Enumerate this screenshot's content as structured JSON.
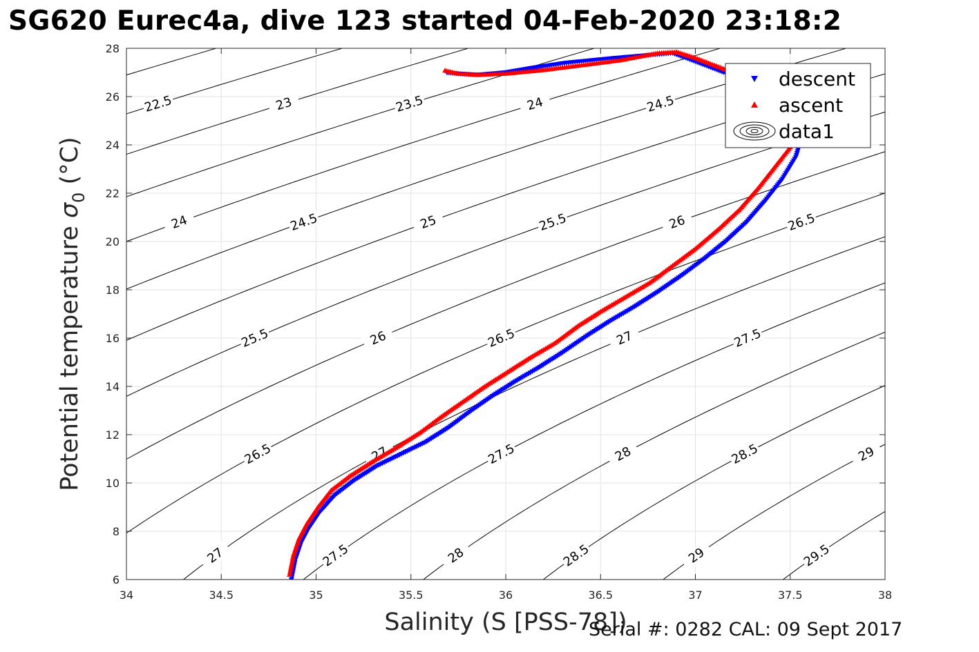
{
  "title": "SG620 Eurec4a, dive 123 started 04-Feb-2020 23:18:2",
  "footer": "Serial #: 0282  CAL: 09 Sept 2017",
  "chart_data": {
    "type": "scatter",
    "xlabel": "Salinity (S [PSS-78])",
    "ylabel_main": "Potential temperature ",
    "ylabel_symbol": "σ",
    "ylabel_sub": "0",
    "ylabel_unit": " (°C)",
    "xlim": [
      34,
      38
    ],
    "ylim": [
      6,
      28
    ],
    "xticks": [
      34,
      34.5,
      35,
      35.5,
      36,
      36.5,
      37,
      37.5,
      38
    ],
    "yticks": [
      6,
      8,
      10,
      12,
      14,
      16,
      18,
      20,
      22,
      24,
      26,
      28
    ],
    "grid": true,
    "legend_position": "top-right",
    "legend": [
      {
        "label": "descent",
        "marker": "triangle-down",
        "color": "#0000ff"
      },
      {
        "label": "ascent",
        "marker": "triangle-up",
        "color": "#ff0000"
      },
      {
        "label": "data1",
        "marker": "contour-rings",
        "color": "#000000"
      }
    ],
    "series": [
      {
        "name": "descent",
        "color": "#0000ff",
        "marker": "triangle-down",
        "points": [
          [
            34.87,
            6.0
          ],
          [
            34.89,
            6.8
          ],
          [
            34.92,
            7.5
          ],
          [
            34.96,
            8.1
          ],
          [
            35.02,
            8.8
          ],
          [
            35.1,
            9.5
          ],
          [
            35.2,
            10.1
          ],
          [
            35.32,
            10.7
          ],
          [
            35.45,
            11.2
          ],
          [
            35.58,
            11.7
          ],
          [
            35.7,
            12.3
          ],
          [
            35.82,
            13.0
          ],
          [
            35.93,
            13.6
          ],
          [
            36.05,
            14.2
          ],
          [
            36.18,
            14.8
          ],
          [
            36.3,
            15.4
          ],
          [
            36.43,
            16.1
          ],
          [
            36.55,
            16.7
          ],
          [
            36.68,
            17.3
          ],
          [
            36.8,
            17.9
          ],
          [
            36.93,
            18.6
          ],
          [
            37.05,
            19.3
          ],
          [
            37.16,
            20.0
          ],
          [
            37.27,
            20.8
          ],
          [
            37.37,
            21.7
          ],
          [
            37.46,
            22.6
          ],
          [
            37.53,
            23.5
          ],
          [
            37.56,
            24.3
          ],
          [
            37.45,
            26.3
          ],
          [
            37.3,
            26.7
          ],
          [
            37.15,
            27.0
          ],
          [
            37.05,
            27.3
          ],
          [
            36.95,
            27.6
          ],
          [
            36.88,
            27.8
          ],
          [
            36.58,
            27.6
          ],
          [
            36.32,
            27.4
          ],
          [
            36.15,
            27.2
          ],
          [
            36.0,
            27.0
          ],
          [
            35.85,
            26.9
          ],
          [
            35.75,
            26.95
          ],
          [
            35.68,
            27.0
          ]
        ]
      },
      {
        "name": "ascent",
        "color": "#ff0000",
        "marker": "triangle-up",
        "points": [
          [
            34.86,
            6.2
          ],
          [
            34.88,
            7.0
          ],
          [
            34.91,
            7.7
          ],
          [
            34.95,
            8.3
          ],
          [
            35.01,
            9.0
          ],
          [
            35.08,
            9.7
          ],
          [
            35.18,
            10.3
          ],
          [
            35.3,
            10.9
          ],
          [
            35.43,
            11.5
          ],
          [
            35.55,
            12.1
          ],
          [
            35.67,
            12.8
          ],
          [
            35.78,
            13.4
          ],
          [
            35.89,
            14.0
          ],
          [
            36.01,
            14.6
          ],
          [
            36.13,
            15.2
          ],
          [
            36.26,
            15.8
          ],
          [
            36.38,
            16.5
          ],
          [
            36.5,
            17.1
          ],
          [
            36.63,
            17.7
          ],
          [
            36.76,
            18.3
          ],
          [
            36.88,
            19.0
          ],
          [
            37.0,
            19.7
          ],
          [
            37.12,
            20.5
          ],
          [
            37.23,
            21.3
          ],
          [
            37.33,
            22.2
          ],
          [
            37.42,
            23.1
          ],
          [
            37.5,
            23.9
          ],
          [
            37.55,
            24.6
          ],
          [
            37.5,
            26.0
          ],
          [
            37.35,
            26.6
          ],
          [
            37.2,
            27.0
          ],
          [
            37.1,
            27.3
          ],
          [
            37.0,
            27.6
          ],
          [
            36.9,
            27.85
          ],
          [
            36.8,
            27.8
          ],
          [
            36.6,
            27.5
          ],
          [
            36.4,
            27.3
          ],
          [
            36.2,
            27.1
          ],
          [
            36.0,
            26.95
          ],
          [
            35.85,
            26.9
          ],
          [
            35.75,
            26.95
          ],
          [
            35.67,
            27.1
          ]
        ]
      }
    ],
    "contour_levels": [
      22,
      22.5,
      23,
      23.5,
      24,
      24.5,
      25,
      25.5,
      26,
      26.5,
      27,
      27.5,
      28,
      28.5,
      29,
      29.5
    ]
  }
}
